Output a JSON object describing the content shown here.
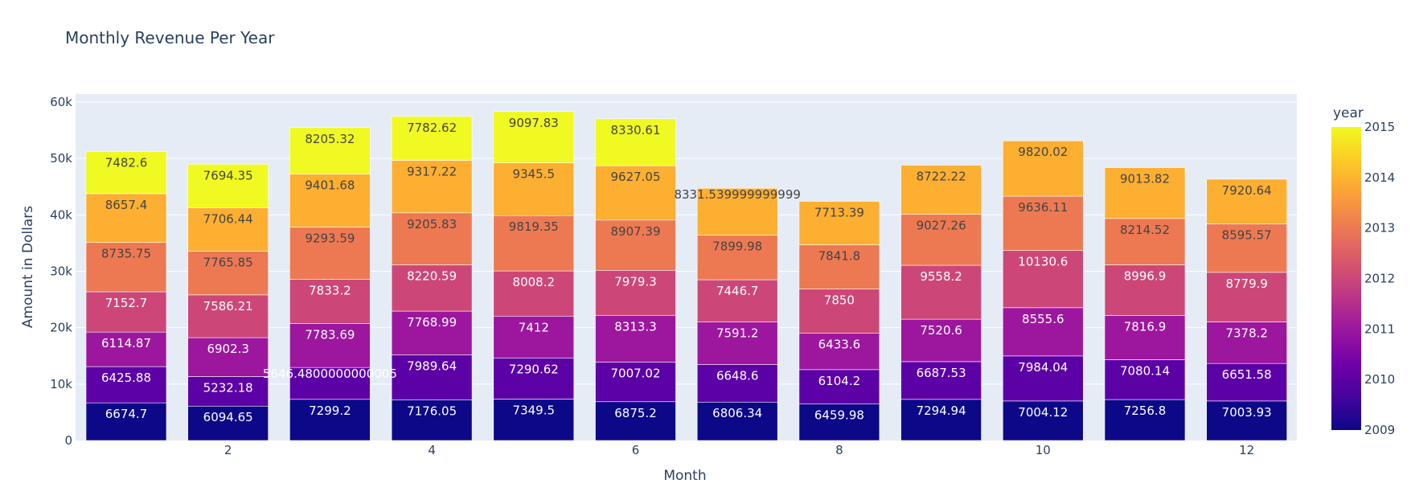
{
  "chart_data": {
    "type": "bar",
    "stacked": true,
    "title": "Monthly Revenue Per Year",
    "xlabel": "Month",
    "ylabel": "Amount in Dollars",
    "ylim": [
      0,
      60000
    ],
    "y_ticks": [
      0,
      10000,
      20000,
      30000,
      40000,
      50000,
      60000
    ],
    "y_tick_labels": [
      "0",
      "10k",
      "20k",
      "30k",
      "40k",
      "50k",
      "60k"
    ],
    "x_ticks": [
      2,
      4,
      6,
      8,
      10,
      12
    ],
    "x_tick_labels": [
      "2",
      "4",
      "6",
      "8",
      "10",
      "12"
    ],
    "grid": true,
    "categories": [
      1,
      2,
      3,
      4,
      5,
      6,
      7,
      8,
      9,
      10,
      11,
      12
    ],
    "colorbar": {
      "title": "year",
      "range": [
        2009,
        2015
      ],
      "ticks": [
        "2009",
        "2010",
        "2011",
        "2012",
        "2013",
        "2014",
        "2015"
      ],
      "colors": [
        "#0d0887",
        "#46039f",
        "#7201a8",
        "#9c179e",
        "#bd3786",
        "#d8576b",
        "#ed7953",
        "#fb9f3a",
        "#fdca26",
        "#f0f921"
      ]
    },
    "series": [
      {
        "name": "2009",
        "color": "#0d0887",
        "label_color": "#ffffff",
        "values": [
          6674.7,
          6094.65,
          7299.2,
          7176.05,
          7349.5,
          6875.2,
          6806.34,
          6459.98,
          7294.94,
          7004.12,
          7256.8,
          7003.93
        ],
        "labels": [
          "6674.7",
          "6094.65",
          "7299.2",
          "7176.05",
          "7349.5",
          "6875.2",
          "6806.34",
          "6459.98",
          "7294.94",
          "7004.12",
          "7256.8",
          "7003.93"
        ]
      },
      {
        "name": "2010",
        "color": "#5c01a6",
        "label_color": "#ffffff",
        "values": [
          6425.88,
          5232.18,
          5646.48,
          7989.64,
          7290.62,
          7007.02,
          6648.6,
          6104.2,
          6687.53,
          7984.04,
          7080.14,
          6651.58
        ],
        "labels": [
          "6425.88",
          "5232.18",
          "5646.4800000000005",
          "7989.64",
          "7290.62",
          "7007.02",
          "6648.6",
          "6104.2",
          "6687.53",
          "7984.04",
          "7080.14",
          "6651.58"
        ]
      },
      {
        "name": "2011",
        "color": "#9c179e",
        "label_color": "#ffffff",
        "values": [
          6114.87,
          6902.3,
          7783.69,
          7768.99,
          7412,
          8313.3,
          7591.2,
          6433.6,
          7520.6,
          8555.6,
          7816.9,
          7378.2
        ],
        "labels": [
          "6114.87",
          "6902.3",
          "7783.69",
          "7768.99",
          "7412",
          "8313.3",
          "7591.2",
          "6433.6",
          "7520.6",
          "8555.6",
          "7816.9",
          "7378.2"
        ]
      },
      {
        "name": "2012",
        "color": "#cc4778",
        "label_color": "#ffffff",
        "values": [
          7152.7,
          7586.21,
          7833.2,
          8220.59,
          8008.2,
          7979.3,
          7446.7,
          7850,
          9558.2,
          10130.6,
          8996.9,
          8779.9
        ],
        "labels": [
          "7152.7",
          "7586.21",
          "7833.2",
          "8220.59",
          "8008.2",
          "7979.3",
          "7446.7",
          "7850",
          "9558.2",
          "10130.6",
          "8996.9",
          "8779.9"
        ]
      },
      {
        "name": "2013",
        "color": "#ed7953",
        "label_color": "#444444",
        "values": [
          8735.75,
          7765.85,
          9293.59,
          9205.83,
          9819.35,
          8907.39,
          7899.98,
          7841.8,
          9027.26,
          9636.11,
          8214.52,
          8595.57
        ],
        "labels": [
          "8735.75",
          "7765.85",
          "9293.59",
          "9205.83",
          "9819.35",
          "8907.39",
          "7899.98",
          "7841.8",
          "9027.26",
          "9636.11",
          "8214.52",
          "8595.57"
        ]
      },
      {
        "name": "2014",
        "color": "#fdaf31",
        "label_color": "#444444",
        "values": [
          8657.4,
          7706.44,
          9401.68,
          9317.22,
          9345.5,
          9627.05,
          8331.54,
          7713.39,
          8722.22,
          9820.02,
          9013.82,
          7920.64
        ],
        "labels": [
          "8657.4",
          "7706.44",
          "9401.68",
          "9317.22",
          "9345.5",
          "9627.05",
          "8331.539999999999",
          "7713.39",
          "8722.22",
          "9820.02",
          "9013.82",
          "7920.64"
        ]
      },
      {
        "name": "2015",
        "color": "#f0f921",
        "label_color": "#444444",
        "values": [
          7482.6,
          7694.35,
          8205.32,
          7782.62,
          9097.83,
          8330.61,
          null,
          null,
          null,
          null,
          null,
          null
        ],
        "labels": [
          "7482.6",
          "7694.35",
          "8205.32",
          "7782.62",
          "9097.83",
          "8330.61",
          "",
          "",
          "",
          "",
          "",
          ""
        ]
      }
    ]
  }
}
